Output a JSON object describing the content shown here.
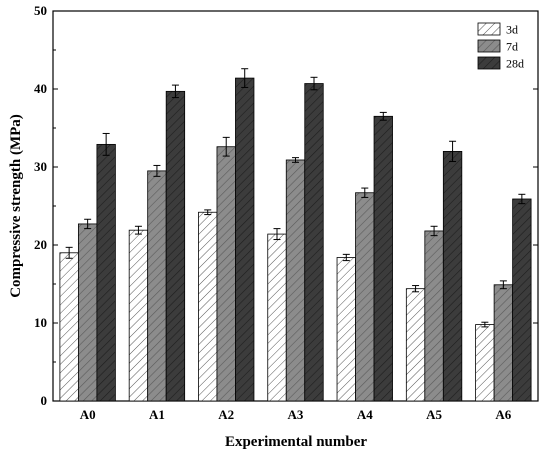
{
  "chart_data": {
    "type": "bar",
    "xlabel": "Experimental number",
    "ylabel": "Compressive strength (MPa)",
    "ylim": [
      0,
      50
    ],
    "yticks": [
      0,
      10,
      20,
      30,
      40,
      50
    ],
    "categories": [
      "A0",
      "A1",
      "A2",
      "A3",
      "A4",
      "A5",
      "A6"
    ],
    "series": [
      {
        "name": "3d",
        "fill": "#ffffff",
        "values": [
          19.0,
          21.9,
          24.2,
          21.4,
          18.4,
          14.4,
          9.8
        ],
        "errors": [
          0.7,
          0.5,
          0.3,
          0.7,
          0.4,
          0.4,
          0.3
        ]
      },
      {
        "name": "7d",
        "fill": "#8c8c8c",
        "values": [
          22.7,
          29.5,
          32.6,
          30.9,
          26.7,
          21.8,
          14.9
        ],
        "errors": [
          0.6,
          0.7,
          1.2,
          0.3,
          0.6,
          0.6,
          0.5
        ]
      },
      {
        "name": "28d",
        "fill": "#3c3c3c",
        "values": [
          32.9,
          39.7,
          41.4,
          40.7,
          36.5,
          32.0,
          25.9
        ],
        "errors": [
          1.4,
          0.8,
          1.2,
          0.8,
          0.5,
          1.3,
          0.6
        ]
      }
    ],
    "legend_position": "top-right",
    "grid": false
  }
}
